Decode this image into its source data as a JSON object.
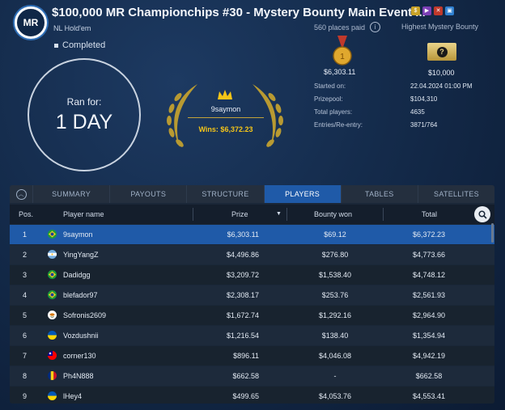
{
  "header": {
    "logo_text": "MR",
    "title": "$100,000 MR Championchips #30 - Mystery Bounty Main Event ...",
    "game_type": "NL Hold'em",
    "places_paid": "560 places paid",
    "bounty_type": "Highest Mystery Bounty",
    "status": "Completed"
  },
  "duration": {
    "label": "Ran for:",
    "value": "1 DAY"
  },
  "winner": {
    "name": "9saymon",
    "wins": "Wins: $6,372.23"
  },
  "prizes": {
    "first_place_amount": "$6,303.11",
    "mystery_amount": "$10,000",
    "mystery_icon": "?"
  },
  "info": [
    {
      "label": "Started on:",
      "value": "22.04.2024   01:00 PM"
    },
    {
      "label": "Prizepool:",
      "value": "$104,310"
    },
    {
      "label": "Total players:",
      "value": "4635"
    },
    {
      "label": "Entries/Re-entry:",
      "value": "3871/764"
    }
  ],
  "tabs": [
    "SUMMARY",
    "PAYOUTS",
    "STRUCTURE",
    "PLAYERS",
    "TABLES",
    "SATELLITES"
  ],
  "active_tab": "PLAYERS",
  "table": {
    "columns": {
      "pos": "Pos.",
      "name": "Player name",
      "prize": "Prize",
      "bounty": "Bounty won",
      "total": "Total"
    },
    "rows": [
      {
        "pos": "1",
        "name": "9saymon",
        "prize": "$6,303.11",
        "bounty": "$69.12",
        "total": "$6,372.23",
        "flag": "brazil"
      },
      {
        "pos": "2",
        "name": "YingYangZ",
        "prize": "$4,496.86",
        "bounty": "$276.80",
        "total": "$4,773.66",
        "flag": "argentina"
      },
      {
        "pos": "3",
        "name": "Dadidgg",
        "prize": "$3,209.72",
        "bounty": "$1,538.40",
        "total": "$4,748.12",
        "flag": "brazil"
      },
      {
        "pos": "4",
        "name": "blefador97",
        "prize": "$2,308.17",
        "bounty": "$253.76",
        "total": "$2,561.93",
        "flag": "brazil"
      },
      {
        "pos": "5",
        "name": "Sofronis2609",
        "prize": "$1,672.74",
        "bounty": "$1,292.16",
        "total": "$2,964.90",
        "flag": "cyprus"
      },
      {
        "pos": "6",
        "name": "Vozdushnii",
        "prize": "$1,216.54",
        "bounty": "$138.40",
        "total": "$1,354.94",
        "flag": "ukraine"
      },
      {
        "pos": "7",
        "name": "corner130",
        "prize": "$896.11",
        "bounty": "$4,046.08",
        "total": "$4,942.19",
        "flag": "taiwan"
      },
      {
        "pos": "8",
        "name": "Ph4N888",
        "prize": "$662.58",
        "bounty": "-",
        "total": "$662.58",
        "flag": "romania"
      },
      {
        "pos": "9",
        "name": "lHey4",
        "prize": "$499.65",
        "bounty": "$4,053.76",
        "total": "$4,553.41",
        "flag": "ukraine"
      }
    ]
  },
  "colors": {
    "accent": "#1f5aa8",
    "gold": "#f5c518",
    "background": "#142b4b"
  }
}
